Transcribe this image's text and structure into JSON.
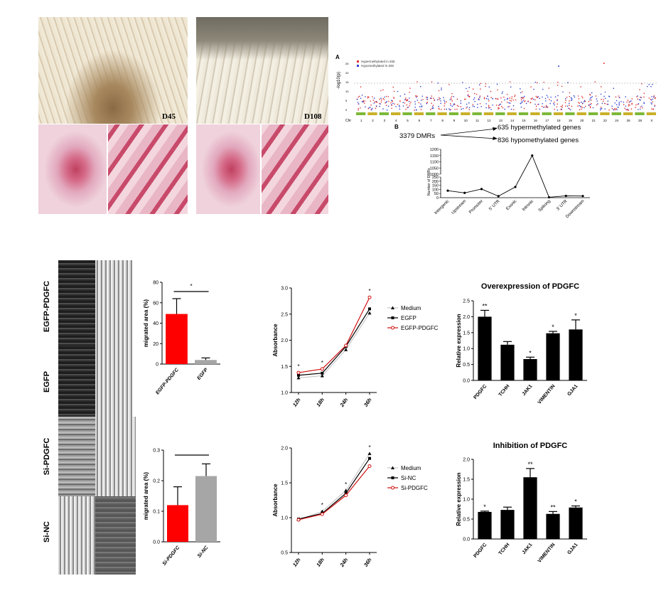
{
  "top_panel": {
    "photo_labels": [
      "D45",
      "D108"
    ],
    "manhattan": {
      "panel_label": "A",
      "legend": [
        "Hypermethylated in d45",
        "Hypomethylated in d45"
      ],
      "y_axis_label": "-log10(p)",
      "y_ticks": [
        "0",
        "5",
        "10",
        "15",
        "20",
        "25"
      ],
      "chr_label": "Chr",
      "chromosomes": [
        "1",
        "2",
        "3",
        "4",
        "5",
        "6",
        "7",
        "8",
        "9",
        "10",
        "11",
        "12",
        "13",
        "14",
        "15",
        "16",
        "17",
        "18",
        "19",
        "20",
        "21",
        "22",
        "24",
        "26",
        "28",
        "X"
      ]
    },
    "dmr": {
      "panel_label": "B",
      "total": "3379 DMRs",
      "hyper": "635 hypermethylated genes",
      "hypo": "836 hypomethylated genes"
    }
  },
  "chart_data": [
    {
      "type": "line",
      "ylabel": "Number of DMRs",
      "categories": [
        "Intergenic",
        "Upstream",
        "Promoter",
        "5' UTR",
        "Exonic",
        "Intronic",
        "Splicing",
        "3' UTR",
        "Downstream"
      ],
      "values": [
        85,
        58,
        105,
        18,
        130,
        1150,
        5,
        22,
        20
      ],
      "y_ticks_upper": [
        "1200",
        "1150",
        "1100",
        "1050",
        "1000"
      ],
      "y_ticks_lower": [
        "250",
        "200",
        "150",
        "100",
        "50",
        "0"
      ]
    },
    {
      "type": "bar",
      "ylabel": "migrated area (%)",
      "categories": [
        "EGFP-PDGFC",
        "EGFP"
      ],
      "values": [
        49,
        4
      ],
      "errors": [
        15,
        2
      ],
      "colors": [
        "#ff0000",
        "#a6a6a6"
      ],
      "ylim": [
        0,
        80
      ],
      "y_ticks": [
        "0",
        "20",
        "40",
        "60",
        "80"
      ],
      "significance": "*"
    },
    {
      "type": "line",
      "ylabel": "Absorbance",
      "categories": [
        "12h",
        "18h",
        "24h",
        "36h"
      ],
      "ylim": [
        1.0,
        3.0
      ],
      "y_ticks": [
        "1.0",
        "1.5",
        "2.0",
        "2.5",
        "3.0"
      ],
      "series": [
        {
          "name": "Medium",
          "values": [
            1.28,
            1.32,
            1.82,
            2.52
          ]
        },
        {
          "name": "EGFP",
          "values": [
            1.33,
            1.37,
            1.88,
            2.6
          ]
        },
        {
          "name": "EGFP-PDGFC",
          "values": [
            1.38,
            1.45,
            1.9,
            2.82
          ]
        }
      ],
      "annotations": [
        "*",
        "*",
        "",
        "*"
      ]
    },
    {
      "type": "bar",
      "title": "Overexpression of PDGFC",
      "ylabel": "Relative expression",
      "categories": [
        "PDGFC",
        "TCHH",
        "JAK1",
        "VIMENTIN",
        "GJA1"
      ],
      "values": [
        2.0,
        1.12,
        0.67,
        1.48,
        1.6
      ],
      "errors": [
        0.2,
        0.1,
        0.06,
        0.06,
        0.3
      ],
      "ylim": [
        0,
        2.5
      ],
      "y_ticks": [
        "0.0",
        "0.5",
        "1.0",
        "1.5",
        "2.0",
        "2.5"
      ],
      "annotations": [
        "**",
        "",
        "*",
        "*",
        "*"
      ]
    },
    {
      "type": "bar",
      "ylabel": "migrated area (%)",
      "categories": [
        "Si-PDGFC",
        "Si-NC"
      ],
      "values": [
        0.12,
        0.215
      ],
      "errors": [
        0.06,
        0.04
      ],
      "colors": [
        "#ff0000",
        "#a6a6a6"
      ],
      "ylim": [
        0,
        0.3
      ],
      "y_ticks": [
        "0.0",
        "0.1",
        "0.2",
        "0.3"
      ]
    },
    {
      "type": "line",
      "ylabel": "Absorbance",
      "categories": [
        "12h",
        "18h",
        "24h",
        "36h"
      ],
      "ylim": [
        0.5,
        2.0
      ],
      "y_ticks": [
        "0.5",
        "1.0",
        "1.5",
        "2.0"
      ],
      "series": [
        {
          "name": "Medium",
          "values": [
            0.97,
            1.09,
            1.39,
            1.92
          ]
        },
        {
          "name": "Si-NC",
          "values": [
            0.98,
            1.06,
            1.35,
            1.85
          ]
        },
        {
          "name": "Si-PDGFC",
          "values": [
            0.97,
            1.05,
            1.32,
            1.74
          ]
        }
      ],
      "annotations": [
        "",
        "*",
        "*",
        "*"
      ]
    },
    {
      "type": "bar",
      "title": "Inhibition of PDGFC",
      "ylabel": "Relative expression",
      "categories": [
        "PDGFC",
        "TCHH",
        "JAK1",
        "VIMENTIN",
        "GJA1"
      ],
      "values": [
        0.68,
        0.73,
        1.55,
        0.63,
        0.79
      ],
      "errors": [
        0.02,
        0.07,
        0.22,
        0.06,
        0.04
      ],
      "ylim": [
        0,
        2.0
      ],
      "y_ticks": [
        "0.0",
        "0.5",
        "1.0",
        "1.5",
        "2.0"
      ],
      "annotations": [
        "*",
        "",
        "**",
        "**",
        "*"
      ]
    }
  ],
  "bottom_panel": {
    "row_labels": [
      "EGFP-PDGFC",
      "EGFP",
      "Si-PDGFC",
      "Si-NC"
    ]
  }
}
